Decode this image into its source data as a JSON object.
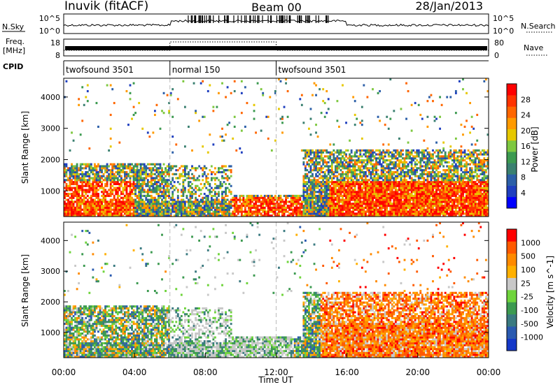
{
  "header": {
    "station": "Inuvik (fitACF)",
    "beam": "Beam 00",
    "date": "28/Jan/2013"
  },
  "top_panels": {
    "nsky_label": "N.Sky",
    "nsky_ticks": [
      "10^5",
      "10^0"
    ],
    "nsearch_label": "N.Search",
    "nsearch_ticks": [
      "10^5",
      "10^0"
    ],
    "freq_label": "Freq.",
    "freq_unit": "[MHz]",
    "freq_ticks": [
      "18",
      "8"
    ],
    "nave_label": "Nave",
    "nave_ticks": [
      "80",
      "0"
    ],
    "cpid_label": "CPID",
    "cpid_segments": [
      {
        "label": "twofsound 3501",
        "start": 0,
        "end": 6
      },
      {
        "label": "normal 150",
        "start": 6,
        "end": 12
      },
      {
        "label": "twofsound 3501",
        "start": 12,
        "end": 24
      }
    ]
  },
  "chart_data": [
    {
      "type": "heatmap",
      "panel": "power",
      "ylabel": "Slant Range [km]",
      "ylim": [
        180,
        4600
      ],
      "yticks": [
        1000,
        2000,
        3000,
        4000
      ],
      "xlim": [
        0,
        24
      ],
      "colorbar": {
        "label": "Power [dB]",
        "ticks": [
          "28",
          "24",
          "20",
          "16",
          "12",
          "8",
          "4"
        ],
        "colors": [
          "#0000ff",
          "#1f3fbf",
          "#2c5fa8",
          "#3a8070",
          "#3c9a50",
          "#7ec840",
          "#e6c800",
          "#ff9a00",
          "#ff6600",
          "#ff3300",
          "#ff0000"
        ]
      },
      "regions": [
        {
          "t": [
            0,
            6
          ],
          "r": [
            300,
            1900
          ],
          "level": "mixed-high"
        },
        {
          "t": [
            6,
            9.5
          ],
          "r": [
            200,
            1800
          ],
          "level": "mixed"
        },
        {
          "t": [
            9.5,
            13.5
          ],
          "r": [
            200,
            900
          ],
          "level": "high"
        },
        {
          "t": [
            13.5,
            24
          ],
          "r": [
            300,
            2400
          ],
          "level": "mixed-high"
        }
      ]
    },
    {
      "type": "heatmap",
      "panel": "velocity",
      "ylabel": "Slant Range [km]",
      "ylim": [
        180,
        4600
      ],
      "yticks": [
        1000,
        2000,
        3000,
        4000
      ],
      "xlim": [
        0,
        24
      ],
      "xticks": [
        "00:00",
        "04:00",
        "08:00",
        "12:00",
        "16:00",
        "20:00",
        "00:00"
      ],
      "xlabel": "Time UT",
      "colorbar": {
        "label": "Velocity [m s^-1]",
        "ticks": [
          "1000",
          "500",
          "100",
          "25",
          "-25",
          "-100",
          "-500",
          "-1000"
        ],
        "colors": [
          "#1438c8",
          "#2a5ab0",
          "#3a7a80",
          "#3c9a50",
          "#6fd43c",
          "#c8c8c8",
          "#ffb000",
          "#ff8a00",
          "#ff5a00",
          "#ff0000"
        ]
      }
    }
  ]
}
